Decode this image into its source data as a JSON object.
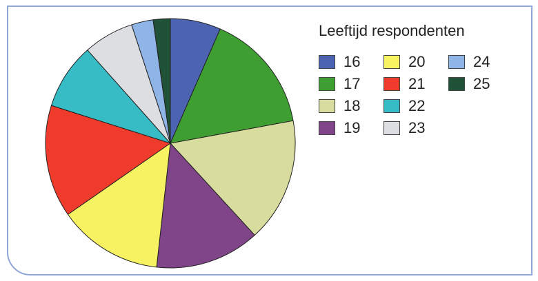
{
  "chart_data": {
    "type": "pie",
    "title": "Leeftijd respondenten",
    "legend_position": "right",
    "slices": [
      {
        "label": "16",
        "value": 6.5,
        "color": "#4b63b0"
      },
      {
        "label": "17",
        "value": 15.5,
        "color": "#3f9e32"
      },
      {
        "label": "18",
        "value": 16.0,
        "color": "#d9dc9f"
      },
      {
        "label": "19",
        "value": 13.5,
        "color": "#7f4588"
      },
      {
        "label": "20",
        "value": 13.5,
        "color": "#f7f262"
      },
      {
        "label": "21",
        "value": 14.5,
        "color": "#ef3b2c"
      },
      {
        "label": "22",
        "value": 8.5,
        "color": "#37bcc6"
      },
      {
        "label": "23",
        "value": 6.5,
        "color": "#dcdee2"
      },
      {
        "label": "24",
        "value": 2.8,
        "color": "#8fb4e6"
      },
      {
        "label": "25",
        "value": 2.2,
        "color": "#1f5236"
      }
    ]
  }
}
